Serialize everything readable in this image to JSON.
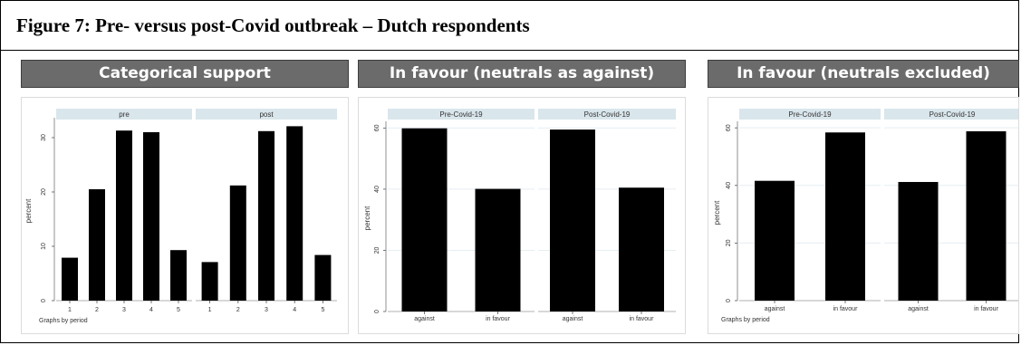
{
  "figure": {
    "title": "Figure 7: Pre- versus post-Covid outbreak – Dutch respondents"
  },
  "panels": [
    {
      "header": "Categorical support"
    },
    {
      "header": "In favour (neutrals as against)"
    },
    {
      "header": "In favour (neutrals excluded)"
    }
  ],
  "colors": {
    "bar": "#000000",
    "header_bg": "#6b6b6b",
    "facet_strip": "#d9e6ec"
  },
  "chart_data": [
    {
      "type": "bar",
      "title": "Categorical support",
      "ylabel": "percent",
      "ylim": [
        0,
        33
      ],
      "yticks": [
        0,
        10,
        20,
        30
      ],
      "note": "Graphs by period",
      "grid": false,
      "facets": [
        {
          "label": "pre",
          "categories": [
            "1",
            "2",
            "3",
            "4",
            "5"
          ],
          "values": [
            7.9,
            20.5,
            31.3,
            31.0,
            9.3
          ]
        },
        {
          "label": "post",
          "categories": [
            "1",
            "2",
            "3",
            "4",
            "5"
          ],
          "values": [
            7.1,
            21.2,
            31.2,
            32.1,
            8.4
          ]
        }
      ]
    },
    {
      "type": "bar",
      "title": "In favour (neutrals as against)",
      "ylabel": "percent",
      "ylim": [
        0,
        61
      ],
      "yticks": [
        0,
        20,
        40,
        60
      ],
      "note": "",
      "grid": true,
      "facets": [
        {
          "label": "Pre-Covid-19",
          "categories": [
            "against",
            "in favour"
          ],
          "values": [
            59.9,
            40.1
          ]
        },
        {
          "label": "Post-Covid-19",
          "categories": [
            "against",
            "in favour"
          ],
          "values": [
            59.5,
            40.5
          ]
        }
      ]
    },
    {
      "type": "bar",
      "title": "In favour (neutrals excluded)",
      "ylabel": "percent",
      "ylim": [
        0,
        61
      ],
      "yticks": [
        0,
        20,
        40,
        60
      ],
      "note": "Graphs by period",
      "grid": true,
      "facets": [
        {
          "label": "Pre-Covid-19",
          "categories": [
            "against",
            "in favour"
          ],
          "values": [
            41.6,
            58.4
          ]
        },
        {
          "label": "Post-Covid-19",
          "categories": [
            "against",
            "in favour"
          ],
          "values": [
            41.2,
            58.8
          ]
        }
      ]
    }
  ]
}
